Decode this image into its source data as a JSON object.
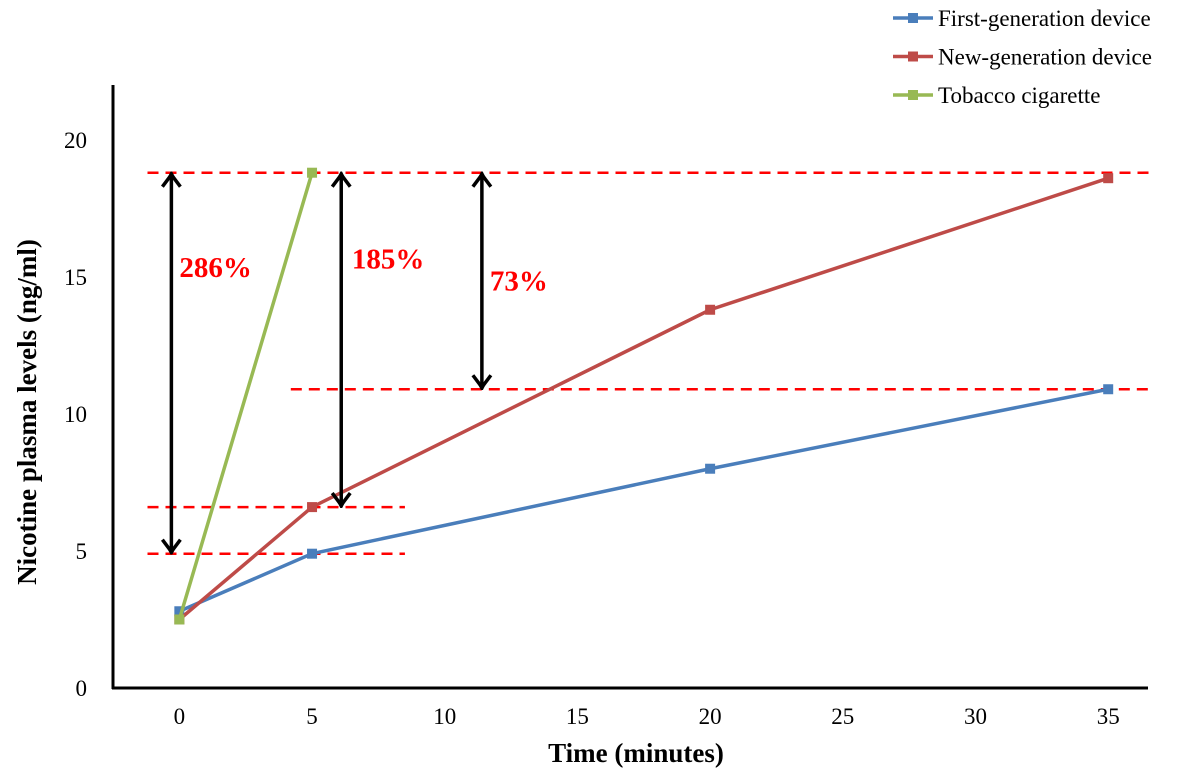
{
  "chart_data": {
    "type": "line",
    "title": "",
    "xlabel": "Time (minutes)",
    "ylabel": "Nicotine plasma levels (ng/ml)",
    "xlim": [
      -2.5,
      36.5
    ],
    "ylim": [
      0,
      22
    ],
    "xticks": [
      0,
      5,
      10,
      15,
      20,
      25,
      30,
      35
    ],
    "yticks": [
      0,
      5,
      10,
      15,
      20
    ],
    "grid": false,
    "legend_position": "top-right",
    "series": [
      {
        "name": "First-generation device",
        "color": "#4a7ebb",
        "x": [
          0,
          5,
          20,
          35
        ],
        "values": [
          2.8,
          4.9,
          8.0,
          10.9
        ]
      },
      {
        "name": "New-generation device",
        "color": "#be4b48",
        "x": [
          0,
          5,
          20,
          35
        ],
        "values": [
          2.5,
          6.6,
          13.8,
          18.6
        ]
      },
      {
        "name": "Tobacco cigarette",
        "color": "#98b954",
        "x": [
          0,
          5
        ],
        "values": [
          2.5,
          18.8
        ]
      }
    ],
    "annotations": {
      "reference_lines": [
        {
          "y": 18.8,
          "x_from": -1.2,
          "x_to": 36.7
        },
        {
          "y": 10.9,
          "x_from": 4.2,
          "x_to": 36.7
        },
        {
          "y": 6.6,
          "x_from": -1.2,
          "x_to": 8.5
        },
        {
          "y": 4.9,
          "x_from": -1.2,
          "x_to": 8.5
        }
      ],
      "reference_color": "#ff0000",
      "arrows": [
        {
          "x": -0.3,
          "y_from": 18.8,
          "y_to": 4.9,
          "label": "286%",
          "label_x": 0,
          "label_y": 15.0
        },
        {
          "x": 6.1,
          "y_from": 18.8,
          "y_to": 6.6,
          "label": "185%",
          "label_x": 6.5,
          "label_y": 15.3
        },
        {
          "x": 11.4,
          "y_from": 18.8,
          "y_to": 10.9,
          "label": "73%",
          "label_x": 11.7,
          "label_y": 14.5
        }
      ]
    }
  }
}
